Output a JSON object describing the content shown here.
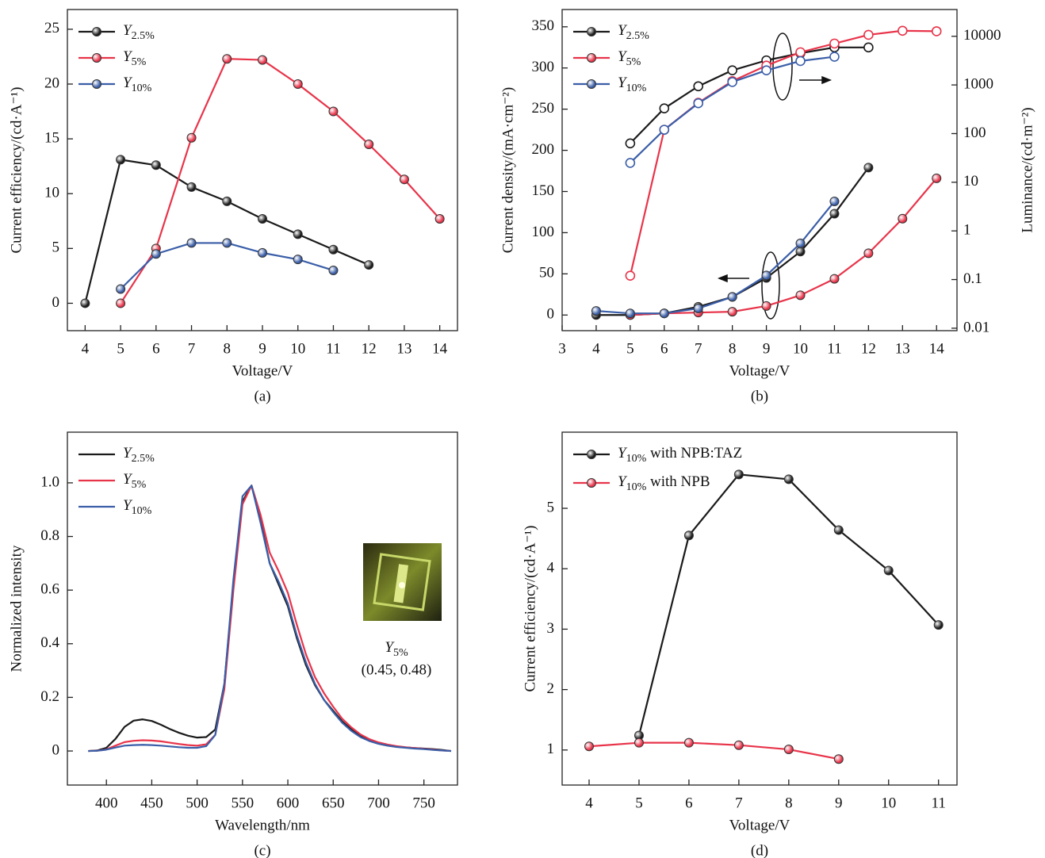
{
  "chart_data": [
    {
      "type": "line",
      "markers": true,
      "caption": "(a)",
      "xlabel": "Voltage/V",
      "ylabel": "Current efficiency/(cd·A⁻¹)",
      "xlim": [
        3.5,
        14.5
      ],
      "xticks": [
        4,
        5,
        6,
        7,
        8,
        9,
        10,
        11,
        12,
        13,
        14
      ],
      "ylim": [
        -2.5,
        26.8
      ],
      "yticks": [
        0,
        5,
        10,
        15,
        20,
        25
      ],
      "legend": "upper left",
      "series": [
        {
          "name": "Y2.5%",
          "color": "#1a1a1a",
          "x": [
            4,
            5,
            6,
            7,
            8,
            9,
            10,
            11,
            12
          ],
          "values": [
            0,
            13.1,
            12.6,
            10.6,
            9.3,
            7.7,
            6.3,
            4.9,
            3.5
          ]
        },
        {
          "name": "Y5%",
          "color": "#e8344a",
          "x": [
            5,
            6,
            7,
            8,
            9,
            10,
            11,
            12,
            13,
            14
          ],
          "values": [
            0,
            5.0,
            15.1,
            22.3,
            22.2,
            20.0,
            17.5,
            14.5,
            11.3,
            7.7
          ]
        },
        {
          "name": "Y10%",
          "color": "#3a5ea8",
          "x": [
            5,
            6,
            7,
            8,
            9,
            10,
            11
          ],
          "values": [
            1.3,
            4.5,
            5.5,
            5.5,
            4.6,
            4.0,
            3.0
          ]
        }
      ]
    },
    {
      "type": "line",
      "markers": true,
      "caption": "(b)",
      "xlabel": "Voltage/V",
      "ylabel": "Current density/(mA·cm⁻²)",
      "y2label": "Luminance/(cd·m⁻²)",
      "xlim": [
        3,
        14.6
      ],
      "xticks": [
        3,
        4,
        5,
        6,
        7,
        8,
        9,
        10,
        11,
        12,
        13,
        14
      ],
      "ylim": [
        -19,
        371
      ],
      "yticks": [
        0,
        50,
        100,
        150,
        200,
        250,
        300,
        350
      ],
      "y2lim": [
        0.0089,
        35500
      ],
      "y2ticks": [
        0.01,
        0.1,
        1,
        10,
        100,
        1000,
        10000
      ],
      "y2scale": "log",
      "legend": "upper left",
      "series": [
        {
          "name": "Y2.5%",
          "color": "#1a1a1a",
          "x": [
            4,
            5,
            6,
            7,
            8,
            9,
            10,
            11,
            12
          ],
          "values": [
            0,
            0,
            2,
            10,
            22,
            45,
            77,
            123,
            179
          ]
        },
        {
          "name": "Y5%",
          "color": "#e8344a",
          "x": [
            5,
            6,
            7,
            8,
            9,
            10,
            11,
            12,
            13,
            14
          ],
          "values": [
            0,
            2,
            3,
            4,
            11,
            24,
            44,
            75,
            117,
            166
          ]
        },
        {
          "name": "Y10%",
          "color": "#3a5ea8",
          "x": [
            4,
            5,
            6,
            7,
            8,
            9,
            10,
            11
          ],
          "values": [
            5,
            2,
            2,
            8,
            22,
            48,
            87,
            138
          ]
        },
        {
          "color": "#1a1a1a",
          "axis": "y2",
          "x": [
            5,
            6,
            7,
            8,
            9,
            10,
            11,
            12
          ],
          "values": [
            63,
            330,
            940,
            2000,
            3200,
            4500,
            5900,
            5900
          ]
        },
        {
          "color": "#e8344a",
          "axis": "y2",
          "x": [
            5,
            6,
            7,
            8,
            9,
            10,
            11,
            12,
            13,
            14
          ],
          "values": [
            0.12,
            120,
            430,
            1200,
            2500,
            4700,
            7100,
            10700,
            13000,
            12700
          ]
        },
        {
          "color": "#3a5ea8",
          "axis": "y2",
          "x": [
            5,
            6,
            7,
            8,
            9,
            10,
            11
          ],
          "values": [
            25,
            120,
            420,
            1150,
            2000,
            3100,
            3800
          ]
        }
      ]
    },
    {
      "type": "line",
      "markers": false,
      "caption": "(c)",
      "xlabel": "Wavelength/nm",
      "ylabel": "Normalized intensity",
      "xlim": [
        357,
        787
      ],
      "xticks": [
        400,
        450,
        500,
        550,
        600,
        650,
        700,
        750
      ],
      "ylim": [
        -0.127,
        1.189
      ],
      "yticks": [
        0,
        0.2,
        0.4,
        0.6,
        0.8,
        {
          "value": 1,
          "label": "1.0"
        }
      ],
      "legend": "upper left",
      "annotation": "Y5%",
      "annotation_coords": "(0.45, 0.48)",
      "x": [
        380,
        390,
        400,
        410,
        420,
        430,
        440,
        450,
        460,
        470,
        480,
        490,
        500,
        510,
        520,
        530,
        540,
        550,
        560,
        570,
        580,
        590,
        600,
        610,
        620,
        630,
        640,
        650,
        660,
        670,
        680,
        690,
        700,
        710,
        720,
        730,
        740,
        750,
        760,
        770,
        780
      ],
      "series": [
        {
          "name": "Y2.5%",
          "color": "#1a1a1a",
          "values": [
            0,
            0.002,
            0.012,
            0.045,
            0.09,
            0.113,
            0.118,
            0.112,
            0.098,
            0.082,
            0.068,
            0.057,
            0.05,
            0.052,
            0.08,
            0.25,
            0.62,
            0.93,
            0.99,
            0.86,
            0.7,
            0.62,
            0.54,
            0.42,
            0.32,
            0.245,
            0.19,
            0.15,
            0.11,
            0.08,
            0.055,
            0.038,
            0.027,
            0.02,
            0.016,
            0.013,
            0.011,
            0.009,
            0.007,
            0.004,
            0
          ]
        },
        {
          "name": "Y5%",
          "color": "#e8344a",
          "values": [
            0,
            0.001,
            0.006,
            0.02,
            0.033,
            0.038,
            0.04,
            0.039,
            0.036,
            0.031,
            0.026,
            0.022,
            0.02,
            0.025,
            0.06,
            0.23,
            0.6,
            0.92,
            0.99,
            0.88,
            0.74,
            0.67,
            0.59,
            0.47,
            0.36,
            0.275,
            0.215,
            0.165,
            0.12,
            0.088,
            0.062,
            0.044,
            0.032,
            0.024,
            0.018,
            0.014,
            0.011,
            0.008,
            0.005,
            0.002,
            0
          ]
        },
        {
          "name": "Y10%",
          "color": "#3a5ea8",
          "values": [
            0,
            0.001,
            0.005,
            0.013,
            0.02,
            0.022,
            0.023,
            0.022,
            0.02,
            0.017,
            0.014,
            0.012,
            0.012,
            0.018,
            0.06,
            0.25,
            0.64,
            0.95,
            0.99,
            0.85,
            0.7,
            0.63,
            0.55,
            0.43,
            0.33,
            0.25,
            0.19,
            0.145,
            0.105,
            0.075,
            0.052,
            0.037,
            0.027,
            0.02,
            0.015,
            0.012,
            0.009,
            0.007,
            0.004,
            0.002,
            0
          ]
        }
      ]
    },
    {
      "type": "line",
      "markers": true,
      "caption": "(d)",
      "xlabel": "Voltage/V",
      "ylabel": "Current efficiency/(cd·A⁻¹)",
      "xlim": [
        3.46,
        11.37
      ],
      "xticks": [
        4,
        5,
        6,
        7,
        8,
        9,
        10,
        11
      ],
      "ylim": [
        0.42,
        6.26
      ],
      "yticks": [
        1,
        2,
        3,
        4,
        5
      ],
      "legend": "upper left",
      "series": [
        {
          "name": "Y10% with NPB:TAZ",
          "color": "#1a1a1a",
          "x": [
            5,
            6,
            7,
            8,
            9,
            10,
            11
          ],
          "values": [
            1.24,
            4.55,
            5.56,
            5.48,
            4.64,
            3.97,
            3.07
          ]
        },
        {
          "name": "Y10% with NPB",
          "color": "#e8344a",
          "x": [
            4,
            5,
            6,
            7,
            8,
            9
          ],
          "values": [
            1.06,
            1.12,
            1.12,
            1.08,
            1.01,
            0.85
          ]
        }
      ]
    }
  ]
}
